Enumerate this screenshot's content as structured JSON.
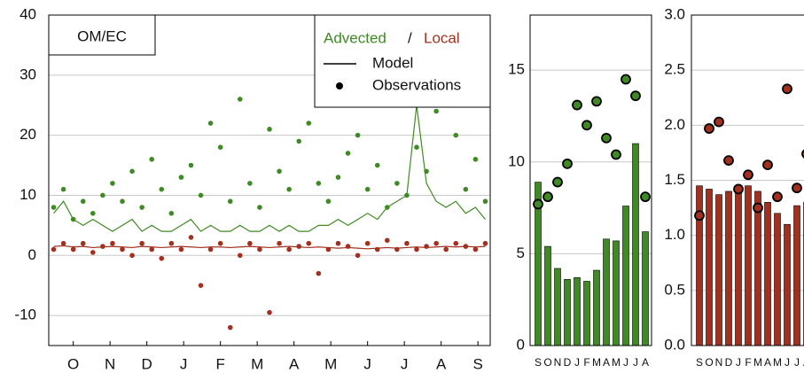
{
  "chart_data": [
    {
      "type": "scatter-line",
      "title": "OM/EC",
      "legend_labels": {
        "separator": "/",
        "model": "Model",
        "observations": "Observations"
      },
      "xlim": [
        0,
        360
      ],
      "xticks": [
        {
          "value": 20,
          "label": "O"
        },
        {
          "value": 50,
          "label": "N"
        },
        {
          "value": 80,
          "label": "D"
        },
        {
          "value": 110,
          "label": "J"
        },
        {
          "value": 140,
          "label": "F"
        },
        {
          "value": 170,
          "label": "M"
        },
        {
          "value": 200,
          "label": "A"
        },
        {
          "value": 230,
          "label": "M"
        },
        {
          "value": 260,
          "label": "J"
        },
        {
          "value": 290,
          "label": "J"
        },
        {
          "value": 320,
          "label": "A"
        },
        {
          "value": 350,
          "label": "S"
        }
      ],
      "ylim": [
        -15,
        40
      ],
      "yticks": [
        -10,
        0,
        10,
        20,
        30,
        40
      ],
      "grid": true,
      "series": [
        {
          "name": "Advected",
          "color": "#3f8a24",
          "x": [
            4,
            12,
            20,
            28,
            36,
            44,
            52,
            60,
            68,
            76,
            84,
            92,
            100,
            108,
            116,
            124,
            132,
            140,
            148,
            156,
            164,
            172,
            180,
            188,
            196,
            204,
            212,
            220,
            228,
            236,
            244,
            252,
            260,
            268,
            276,
            284,
            292,
            300,
            308,
            316,
            324,
            332,
            340,
            348,
            356
          ],
          "observations": [
            8,
            11,
            6,
            9,
            7,
            10,
            12,
            9,
            14,
            8,
            16,
            11,
            7,
            13,
            15,
            10,
            22,
            18,
            9,
            26,
            12,
            8,
            21,
            14,
            11,
            19,
            22,
            12,
            9,
            13,
            17,
            20,
            11,
            15,
            8,
            12,
            10,
            18,
            14,
            24,
            28,
            20,
            11,
            16,
            9
          ],
          "model": [
            7,
            9,
            6,
            5,
            6,
            5,
            4,
            5,
            6,
            4,
            5,
            4,
            4,
            5,
            6,
            4,
            5,
            4,
            4,
            5,
            4,
            4,
            5,
            4,
            5,
            4,
            4,
            5,
            5,
            6,
            5,
            6,
            7,
            6,
            8,
            9,
            10,
            25,
            12,
            9,
            8,
            9,
            7,
            8,
            6
          ]
        },
        {
          "name": "Local",
          "color": "#a3301f",
          "x": [
            4,
            12,
            20,
            28,
            36,
            44,
            52,
            60,
            68,
            76,
            84,
            92,
            100,
            108,
            116,
            124,
            132,
            140,
            148,
            156,
            164,
            172,
            180,
            188,
            196,
            204,
            212,
            220,
            228,
            236,
            244,
            252,
            260,
            268,
            276,
            284,
            292,
            300,
            308,
            316,
            324,
            332,
            340,
            348,
            356
          ],
          "observations": [
            1,
            2,
            1,
            2,
            0.5,
            1.5,
            2,
            1,
            0,
            2,
            1,
            -0.5,
            2,
            1,
            3,
            -5,
            1,
            2,
            -12,
            0,
            2,
            1,
            -9.5,
            2,
            1,
            1.5,
            2,
            -3,
            1,
            2,
            1.5,
            0,
            2,
            1,
            2.5,
            1,
            2,
            1,
            1.5,
            2,
            1,
            2,
            1.5,
            1,
            2
          ],
          "model": [
            1.5,
            1.6,
            1.4,
            1.5,
            1.3,
            1.4,
            1.5,
            1.4,
            1.3,
            1.5,
            1.4,
            1.3,
            1.4,
            1.5,
            1.4,
            1.3,
            1.4,
            1.4,
            1.3,
            1.4,
            1.5,
            1.4,
            1.3,
            1.4,
            1.5,
            1.4,
            1.3,
            1.4,
            1.3,
            1.2,
            1.3,
            1.2,
            1.1,
            1.2,
            1.3,
            1.2,
            1.3,
            1.4,
            1.3,
            1.4,
            1.5,
            1.4,
            1.5,
            1.4,
            1.5
          ]
        }
      ]
    },
    {
      "type": "bar",
      "color": "#3f8a24",
      "categories": [
        "S",
        "O",
        "N",
        "D",
        "J",
        "F",
        "M",
        "A",
        "M",
        "J",
        "J",
        "A"
      ],
      "values": [
        8.9,
        5.4,
        4.2,
        3.6,
        3.7,
        3.5,
        4.1,
        5.8,
        5.7,
        7.6,
        11.0,
        6.2
      ],
      "observations": [
        7.7,
        8.1,
        8.9,
        9.9,
        13.1,
        12.0,
        13.3,
        11.3,
        10.4,
        14.5,
        13.6,
        8.1
      ],
      "ylim": [
        0,
        18
      ],
      "yticks": [
        0,
        5,
        10,
        15
      ]
    },
    {
      "type": "bar",
      "color": "#a3301f",
      "categories": [
        "S",
        "O",
        "N",
        "D",
        "J",
        "F",
        "M",
        "A",
        "M",
        "J",
        "J",
        "A"
      ],
      "values": [
        1.45,
        1.42,
        1.37,
        1.4,
        1.42,
        1.45,
        1.4,
        1.3,
        1.2,
        1.1,
        1.27,
        1.3
      ],
      "observations": [
        1.18,
        1.97,
        2.03,
        1.68,
        1.42,
        1.55,
        1.25,
        1.64,
        1.35,
        2.33,
        1.43,
        1.74
      ],
      "ylim": [
        0,
        3
      ],
      "yticks": [
        {
          "value": 0,
          "label": "0.0"
        },
        0.5,
        {
          "value": 1,
          "label": "1.0"
        },
        1.5,
        {
          "value": 2,
          "label": "2.0"
        },
        2.5,
        {
          "value": 3,
          "label": "3.0"
        }
      ]
    }
  ]
}
